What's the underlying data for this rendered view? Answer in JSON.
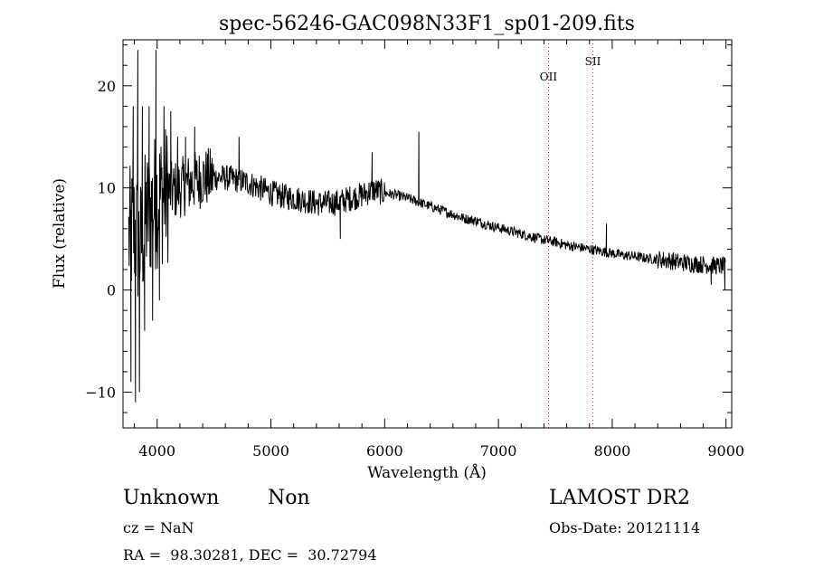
{
  "chart_data": {
    "type": "line",
    "title": "spec-56246-GAC098N33F1_sp01-209.fits",
    "xlabel": "Wavelength (Å)",
    "ylabel": "Flux (relative)",
    "xlim": [
      3700,
      9050
    ],
    "ylim": [
      -13.5,
      24.5
    ],
    "xticks": [
      4000,
      5000,
      6000,
      7000,
      8000,
      9000
    ],
    "yticks": [
      -10,
      0,
      10,
      20
    ],
    "grid": false,
    "series": [
      {
        "x": [
          3750,
          3800,
          3850,
          3900,
          3950,
          4000,
          4100,
          4200,
          4300,
          4400,
          4500,
          4600,
          4700,
          4800,
          4900,
          5000,
          5100,
          5200,
          5300,
          5400,
          5500,
          5600,
          5700,
          5800,
          5900,
          6000,
          6100,
          6200,
          6300,
          6400,
          6500,
          6600,
          6700,
          6800,
          6900,
          7000,
          7100,
          7200,
          7300,
          7400,
          7500,
          7600,
          7700,
          7800,
          7900,
          8000,
          8100,
          8200,
          8300,
          8400,
          8500,
          8600,
          8700,
          8800,
          8900,
          9000
        ],
        "y": [
          5,
          6,
          4,
          7,
          8,
          9,
          9.5,
          10,
          10.5,
          11,
          11,
          11,
          10.8,
          10.5,
          10,
          9.5,
          9.2,
          9.0,
          8.8,
          8.5,
          8.5,
          8.6,
          9.0,
          9.3,
          9.8,
          9.5,
          9.3,
          9.0,
          8.6,
          8.2,
          7.8,
          7.4,
          7.0,
          6.8,
          6.4,
          6.1,
          5.8,
          5.5,
          5.2,
          4.9,
          4.7,
          4.4,
          4.2,
          4.0,
          3.8,
          3.6,
          3.4,
          3.3,
          3.1,
          3.0,
          2.9,
          2.7,
          2.6,
          2.5,
          2.4,
          2.3
        ]
      }
    ],
    "spikes": [
      {
        "x": 3770,
        "y": -9
      },
      {
        "x": 3790,
        "y": 18
      },
      {
        "x": 3810,
        "y": -11
      },
      {
        "x": 3830,
        "y": 23.5
      },
      {
        "x": 3845,
        "y": -10
      },
      {
        "x": 3870,
        "y": 18
      },
      {
        "x": 3890,
        "y": -4
      },
      {
        "x": 3930,
        "y": 18
      },
      {
        "x": 3960,
        "y": -3
      },
      {
        "x": 3990,
        "y": 23.5
      },
      {
        "x": 4020,
        "y": -1
      },
      {
        "x": 4060,
        "y": 18
      },
      {
        "x": 4120,
        "y": 17.5
      },
      {
        "x": 4180,
        "y": 15
      },
      {
        "x": 4250,
        "y": 15
      },
      {
        "x": 4330,
        "y": 16
      },
      {
        "x": 4720,
        "y": 15
      },
      {
        "x": 5610,
        "y": 5
      },
      {
        "x": 5890,
        "y": 13.5
      },
      {
        "x": 6300,
        "y": 15.5
      },
      {
        "x": 7950,
        "y": 6.5
      },
      {
        "x": 8870,
        "y": 0.5
      },
      {
        "x": 8990,
        "y": 0
      }
    ],
    "lines": [
      {
        "label": "OII",
        "x": 7440,
        "color": "#ff0000",
        "label_y": 20.5
      },
      {
        "label": "SII",
        "x": 7830,
        "color": "#ff0000",
        "label_y": 22
      }
    ]
  },
  "info": {
    "class": "Unknown",
    "subclass": "Non",
    "survey": "LAMOST DR2",
    "cz": "cz = NaN",
    "obs_date": "Obs-Date: 20121114",
    "radec": "RA =  98.30281, DEC =  30.72794"
  }
}
